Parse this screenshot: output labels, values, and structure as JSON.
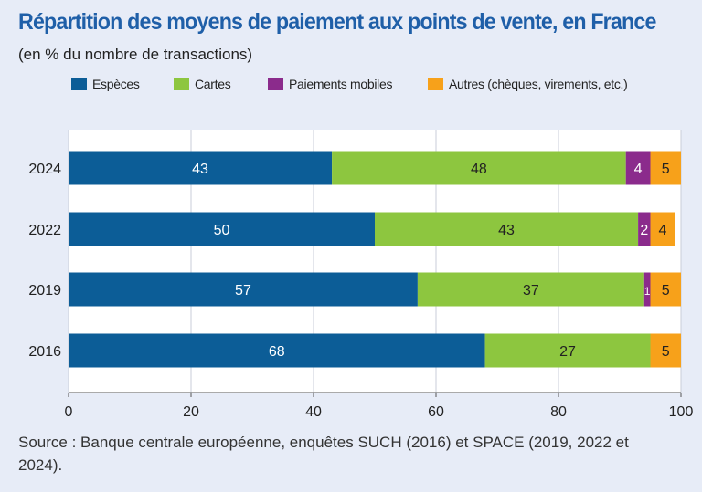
{
  "chart_data": {
    "type": "bar",
    "orientation": "horizontal",
    "stacked": true,
    "title": "Répartition des moyens de paiement aux points de vente, en France",
    "subtitle": "(en % du nombre de transactions)",
    "categories": [
      "2024",
      "2022",
      "2019",
      "2016"
    ],
    "series": [
      {
        "name": "Espèces",
        "color": "#0c5d97",
        "values": [
          43,
          50,
          57,
          68
        ],
        "label_color": "#ffffff"
      },
      {
        "name": "Cartes",
        "color": "#8dc63f",
        "values": [
          48,
          43,
          37,
          27
        ],
        "label_color": "#222222"
      },
      {
        "name": "Paiements mobiles",
        "color": "#8b2b8c",
        "values": [
          4,
          2,
          1,
          0
        ],
        "label_color": "#ffffff"
      },
      {
        "name": "Autres (chèques, virements, etc.)",
        "color": "#f7a11a",
        "values": [
          5,
          4,
          5,
          5
        ],
        "label_color": "#222222"
      }
    ],
    "xlim": [
      0,
      100
    ],
    "xticks": [
      0,
      20,
      40,
      60,
      80,
      100
    ],
    "legend_position": "top",
    "source": "Source : Banque centrale européenne, enquêtes SUCH (2016) et SPACE (2019, 2022 et 2024)."
  }
}
